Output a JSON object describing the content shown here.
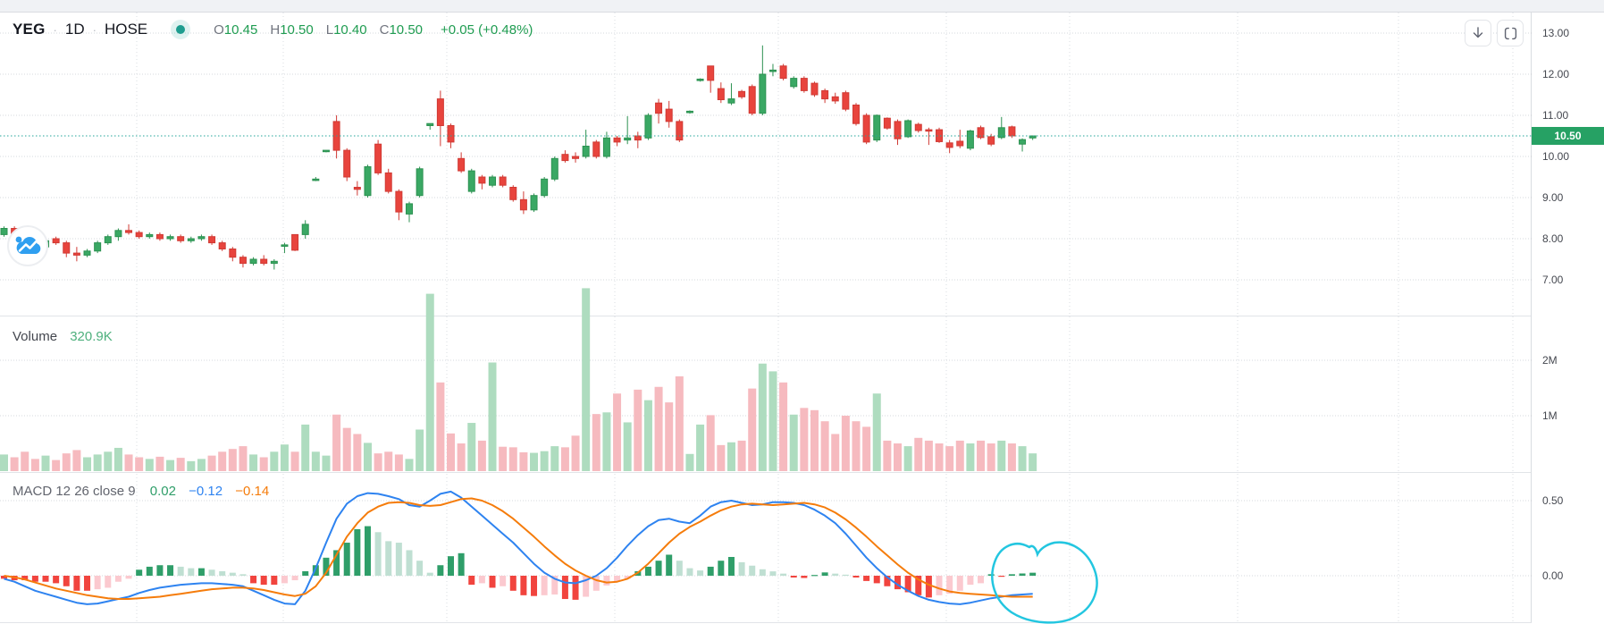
{
  "header": {
    "symbol": "YEG",
    "separator": "·",
    "timeframe": "1D",
    "exchange": "HOSE",
    "status_dot": "teal-dot",
    "ohlc": {
      "open_prefix": "O",
      "open": "10.45",
      "high_prefix": "H",
      "high": "10.50",
      "low_prefix": "L",
      "low": "10.40",
      "close_prefix": "C",
      "close": "10.50",
      "change": "+0.05 (+0.48%)"
    }
  },
  "volume_pane": {
    "label": "Volume",
    "value": "320.9K"
  },
  "macd_pane": {
    "label": "MACD",
    "params": "12 26 close 9",
    "hist_value": "0.02",
    "macd_value": "−0.12",
    "signal_value": "−0.14"
  },
  "axis": {
    "price_ticks": [
      {
        "label": "13.00",
        "value": 13.0
      },
      {
        "label": "12.00",
        "value": 12.0
      },
      {
        "label": "11.00",
        "value": 11.0
      },
      {
        "label": "10.00",
        "value": 10.0
      },
      {
        "label": "9.00",
        "value": 9.0
      },
      {
        "label": "8.00",
        "value": 8.0
      },
      {
        "label": "7.00",
        "value": 7.0
      }
    ],
    "volume_ticks": [
      {
        "label": "2M",
        "value": 2.0
      },
      {
        "label": "1M",
        "value": 1.0
      }
    ],
    "macd_ticks": [
      {
        "label": "0.50",
        "value": 0.5
      },
      {
        "label": "0.00",
        "value": 0.0
      }
    ],
    "last_price": "10.50"
  },
  "colors": {
    "up": "#3aa864",
    "up_border": "#2c9151",
    "down": "#e8443d",
    "down_border": "#d03a34",
    "vol_up": "#aedcbf",
    "vol_down": "#f6babf",
    "hist_pos_strong": "#2f9e69",
    "hist_pos_weak": "#bfdfd2",
    "hist_neg_strong": "#f1443e",
    "hist_neg_weak": "#fbc9cf",
    "macd_line": "#2e83f0",
    "signal_line": "#f57c0b",
    "last_price_line": "#26a69a",
    "badge_bg": "#26a164",
    "annotation": "#23c6e0"
  },
  "chart_data": {
    "type": "candlestick",
    "title": "YEG 1D HOSE",
    "panes": [
      "price",
      "volume",
      "macd"
    ],
    "price_ylim": [
      6.6,
      13.5
    ],
    "volume_ylim": [
      0,
      2.8
    ],
    "macd_ylim": [
      -0.32,
      0.69
    ],
    "grid": true,
    "candles": [
      [
        8.1,
        8.3,
        8.05,
        8.25
      ],
      [
        8.25,
        8.3,
        8.0,
        8.1
      ],
      [
        8.1,
        8.15,
        7.85,
        7.9
      ],
      [
        7.9,
        8.0,
        7.75,
        7.8
      ],
      [
        7.8,
        8.0,
        7.75,
        7.95
      ],
      [
        8.0,
        8.05,
        7.85,
        7.9
      ],
      [
        7.9,
        7.95,
        7.55,
        7.65
      ],
      [
        7.65,
        7.8,
        7.45,
        7.6
      ],
      [
        7.6,
        7.75,
        7.55,
        7.7
      ],
      [
        7.7,
        7.95,
        7.65,
        7.9
      ],
      [
        7.9,
        8.1,
        7.85,
        8.05
      ],
      [
        8.05,
        8.25,
        7.95,
        8.2
      ],
      [
        8.2,
        8.35,
        8.1,
        8.15
      ],
      [
        8.15,
        8.2,
        8.0,
        8.05
      ],
      [
        8.05,
        8.15,
        8.0,
        8.1
      ],
      [
        8.1,
        8.15,
        7.95,
        8.0
      ],
      [
        8.0,
        8.1,
        7.95,
        8.05
      ],
      [
        8.05,
        8.1,
        7.9,
        7.95
      ],
      [
        7.95,
        8.05,
        7.9,
        8.0
      ],
      [
        8.0,
        8.1,
        7.95,
        8.05
      ],
      [
        8.05,
        8.1,
        7.85,
        7.9
      ],
      [
        7.9,
        7.95,
        7.7,
        7.75
      ],
      [
        7.75,
        7.8,
        7.45,
        7.55
      ],
      [
        7.55,
        7.6,
        7.3,
        7.4
      ],
      [
        7.4,
        7.55,
        7.35,
        7.5
      ],
      [
        7.5,
        7.6,
        7.35,
        7.4
      ],
      [
        7.4,
        7.5,
        7.25,
        7.45
      ],
      [
        7.85,
        7.9,
        7.65,
        7.85
      ],
      [
        8.1,
        8.1,
        7.7,
        7.72
      ],
      [
        8.1,
        8.45,
        8.0,
        8.35
      ],
      [
        9.45,
        9.5,
        9.4,
        9.45
      ],
      [
        10.15,
        10.15,
        10.1,
        10.15
      ],
      [
        10.85,
        11.0,
        9.95,
        10.15
      ],
      [
        10.15,
        10.2,
        9.4,
        9.5
      ],
      [
        9.25,
        9.4,
        9.05,
        9.2
      ],
      [
        9.05,
        9.8,
        9.0,
        9.75
      ],
      [
        10.3,
        10.4,
        9.55,
        9.6
      ],
      [
        9.6,
        9.7,
        9.1,
        9.15
      ],
      [
        9.15,
        9.2,
        8.45,
        8.65
      ],
      [
        8.6,
        8.9,
        8.4,
        8.85
      ],
      [
        9.05,
        9.75,
        9.0,
        9.7
      ],
      [
        10.75,
        10.8,
        10.65,
        10.8
      ],
      [
        11.4,
        11.6,
        10.25,
        10.75
      ],
      [
        10.75,
        10.8,
        10.2,
        10.35
      ],
      [
        9.95,
        10.1,
        9.6,
        9.65
      ],
      [
        9.15,
        9.7,
        9.1,
        9.65
      ],
      [
        9.5,
        9.55,
        9.2,
        9.35
      ],
      [
        9.3,
        9.55,
        9.25,
        9.5
      ],
      [
        9.5,
        9.55,
        9.25,
        9.3
      ],
      [
        9.25,
        9.3,
        8.9,
        8.95
      ],
      [
        8.95,
        9.15,
        8.6,
        8.7
      ],
      [
        8.7,
        9.1,
        8.65,
        9.05
      ],
      [
        9.05,
        9.5,
        9.0,
        9.45
      ],
      [
        9.45,
        10.0,
        9.4,
        9.95
      ],
      [
        10.05,
        10.15,
        9.85,
        9.9
      ],
      [
        10.0,
        10.1,
        9.85,
        9.95
      ],
      [
        10.0,
        10.65,
        9.95,
        10.25
      ],
      [
        10.35,
        10.4,
        9.95,
        10.0
      ],
      [
        10.0,
        10.6,
        9.95,
        10.45
      ],
      [
        10.45,
        10.5,
        10.25,
        10.35
      ],
      [
        10.4,
        10.98,
        10.3,
        10.45
      ],
      [
        10.5,
        10.6,
        10.2,
        10.4
      ],
      [
        10.45,
        11.05,
        10.4,
        11.0
      ],
      [
        11.3,
        11.4,
        10.8,
        11.05
      ],
      [
        11.15,
        11.35,
        10.7,
        10.85
      ],
      [
        10.85,
        10.9,
        10.35,
        10.4
      ],
      [
        11.08,
        11.12,
        11.04,
        11.1
      ],
      [
        11.85,
        11.9,
        11.82,
        11.88
      ],
      [
        12.2,
        12.2,
        11.55,
        11.85
      ],
      [
        11.65,
        11.8,
        11.3,
        11.38
      ],
      [
        11.3,
        11.78,
        11.25,
        11.4
      ],
      [
        11.58,
        11.62,
        11.4,
        11.45
      ],
      [
        11.7,
        11.75,
        11.0,
        11.05
      ],
      [
        11.05,
        12.7,
        11.0,
        12.0
      ],
      [
        12.1,
        12.25,
        11.95,
        12.1
      ],
      [
        12.2,
        12.25,
        11.85,
        11.9
      ],
      [
        11.7,
        11.95,
        11.65,
        11.9
      ],
      [
        11.9,
        11.95,
        11.55,
        11.6
      ],
      [
        11.78,
        11.82,
        11.45,
        11.5
      ],
      [
        11.6,
        11.65,
        11.3,
        11.4
      ],
      [
        11.45,
        11.55,
        11.28,
        11.35
      ],
      [
        11.55,
        11.6,
        11.1,
        11.15
      ],
      [
        11.25,
        11.3,
        10.75,
        10.8
      ],
      [
        11.0,
        11.05,
        10.3,
        10.35
      ],
      [
        10.4,
        11.02,
        10.35,
        11.0
      ],
      [
        10.93,
        10.95,
        10.65,
        10.69
      ],
      [
        10.85,
        10.9,
        10.28,
        10.43
      ],
      [
        10.48,
        10.9,
        10.45,
        10.87
      ],
      [
        10.78,
        10.82,
        10.58,
        10.63
      ],
      [
        10.65,
        10.7,
        10.28,
        10.63
      ],
      [
        10.65,
        10.7,
        10.33,
        10.36
      ],
      [
        10.33,
        10.4,
        10.08,
        10.22
      ],
      [
        10.37,
        10.65,
        10.2,
        10.26
      ],
      [
        10.2,
        10.65,
        10.15,
        10.62
      ],
      [
        10.7,
        10.75,
        10.42,
        10.46
      ],
      [
        10.48,
        10.55,
        10.25,
        10.3
      ],
      [
        10.46,
        10.96,
        10.42,
        10.7
      ],
      [
        10.72,
        10.75,
        10.45,
        10.5
      ],
      [
        10.3,
        10.44,
        10.12,
        10.41
      ],
      [
        10.45,
        10.5,
        10.4,
        10.5
      ]
    ],
    "volumes": [
      0.3,
      0.25,
      0.35,
      0.22,
      0.28,
      0.2,
      0.32,
      0.38,
      0.25,
      0.3,
      0.35,
      0.42,
      0.3,
      0.25,
      0.22,
      0.26,
      0.2,
      0.24,
      0.18,
      0.22,
      0.28,
      0.35,
      0.4,
      0.45,
      0.3,
      0.25,
      0.35,
      0.48,
      0.35,
      0.84,
      0.35,
      0.28,
      1.02,
      0.78,
      0.67,
      0.51,
      0.32,
      0.35,
      0.3,
      0.22,
      0.75,
      3.2,
      1.6,
      0.68,
      0.5,
      0.87,
      0.55,
      1.96,
      0.44,
      0.43,
      0.34,
      0.33,
      0.36,
      0.45,
      0.43,
      0.64,
      3.3,
      1.03,
      1.06,
      1.4,
      0.88,
      1.47,
      1.28,
      1.52,
      1.24,
      1.71,
      0.31,
      0.84,
      1.01,
      0.47,
      0.52,
      0.55,
      1.49,
      1.94,
      1.8,
      1.6,
      1.02,
      1.14,
      1.1,
      0.9,
      0.67,
      1.0,
      0.9,
      0.8,
      1.4,
      0.55,
      0.5,
      0.45,
      0.6,
      0.55,
      0.5,
      0.45,
      0.55,
      0.5,
      0.55,
      0.5,
      0.55,
      0.5,
      0.45,
      0.32
    ],
    "histogram": [
      -0.02,
      -0.03,
      -0.03,
      -0.04,
      -0.04,
      -0.05,
      -0.07,
      -0.1,
      -0.1,
      -0.09,
      -0.08,
      -0.04,
      -0.02,
      0.04,
      0.06,
      0.07,
      0.07,
      0.06,
      0.05,
      0.05,
      0.04,
      0.03,
      0.02,
      0.01,
      -0.05,
      -0.06,
      -0.06,
      -0.05,
      -0.03,
      0.03,
      0.07,
      0.12,
      0.17,
      0.22,
      0.31,
      0.33,
      0.29,
      0.23,
      0.22,
      0.17,
      0.1,
      0.02,
      0.07,
      0.13,
      0.15,
      -0.06,
      -0.05,
      -0.08,
      -0.07,
      -0.1,
      -0.13,
      -0.135,
      -0.13,
      -0.125,
      -0.155,
      -0.16,
      -0.14,
      -0.1,
      -0.065,
      -0.04,
      -0.02,
      0.03,
      0.06,
      0.1,
      0.14,
      0.1,
      0.05,
      0.035,
      0.06,
      0.1,
      0.125,
      0.09,
      0.067,
      0.043,
      0.029,
      0.014,
      -0.012,
      -0.015,
      0.005,
      0.022,
      0.014,
      0.007,
      -0.012,
      -0.035,
      -0.05,
      -0.07,
      -0.09,
      -0.11,
      -0.13,
      -0.145,
      -0.13,
      -0.12,
      -0.1,
      -0.06,
      -0.05,
      0.01,
      -0.005,
      0.01,
      0.015,
      0.02
    ],
    "macd_line": [
      -0.02,
      -0.04,
      -0.07,
      -0.1,
      -0.12,
      -0.14,
      -0.16,
      -0.18,
      -0.19,
      -0.185,
      -0.17,
      -0.155,
      -0.14,
      -0.115,
      -0.095,
      -0.08,
      -0.07,
      -0.06,
      -0.055,
      -0.05,
      -0.05,
      -0.055,
      -0.06,
      -0.07,
      -0.1,
      -0.13,
      -0.16,
      -0.185,
      -0.19,
      -0.1,
      0.05,
      0.22,
      0.38,
      0.48,
      0.53,
      0.55,
      0.545,
      0.53,
      0.51,
      0.47,
      0.46,
      0.5,
      0.545,
      0.56,
      0.52,
      0.46,
      0.4,
      0.34,
      0.28,
      0.22,
      0.15,
      0.08,
      0.02,
      -0.02,
      -0.045,
      -0.05,
      -0.03,
      0.0,
      0.05,
      0.12,
      0.2,
      0.27,
      0.33,
      0.37,
      0.38,
      0.36,
      0.35,
      0.4,
      0.46,
      0.49,
      0.5,
      0.485,
      0.47,
      0.475,
      0.49,
      0.49,
      0.485,
      0.47,
      0.44,
      0.4,
      0.35,
      0.28,
      0.2,
      0.12,
      0.05,
      -0.01,
      -0.06,
      -0.1,
      -0.135,
      -0.16,
      -0.175,
      -0.185,
      -0.19,
      -0.18,
      -0.165,
      -0.15,
      -0.14,
      -0.13,
      -0.125,
      -0.12
    ],
    "signal_line": [
      0.0,
      -0.01,
      -0.025,
      -0.045,
      -0.065,
      -0.085,
      -0.1,
      -0.115,
      -0.13,
      -0.14,
      -0.15,
      -0.155,
      -0.155,
      -0.15,
      -0.145,
      -0.14,
      -0.13,
      -0.12,
      -0.11,
      -0.1,
      -0.09,
      -0.085,
      -0.08,
      -0.08,
      -0.085,
      -0.095,
      -0.11,
      -0.125,
      -0.135,
      -0.12,
      -0.07,
      0.02,
      0.14,
      0.26,
      0.35,
      0.42,
      0.46,
      0.485,
      0.49,
      0.485,
      0.47,
      0.465,
      0.47,
      0.49,
      0.51,
      0.515,
      0.5,
      0.47,
      0.43,
      0.38,
      0.32,
      0.26,
      0.195,
      0.135,
      0.08,
      0.035,
      0.0,
      -0.03,
      -0.045,
      -0.04,
      -0.02,
      0.02,
      0.08,
      0.15,
      0.22,
      0.28,
      0.325,
      0.36,
      0.4,
      0.435,
      0.46,
      0.475,
      0.48,
      0.475,
      0.47,
      0.475,
      0.48,
      0.485,
      0.475,
      0.455,
      0.42,
      0.375,
      0.32,
      0.26,
      0.195,
      0.135,
      0.075,
      0.02,
      -0.025,
      -0.06,
      -0.085,
      -0.105,
      -0.115,
      -0.12,
      -0.125,
      -0.13,
      -0.135,
      -0.14,
      -0.14,
      -0.14
    ]
  }
}
